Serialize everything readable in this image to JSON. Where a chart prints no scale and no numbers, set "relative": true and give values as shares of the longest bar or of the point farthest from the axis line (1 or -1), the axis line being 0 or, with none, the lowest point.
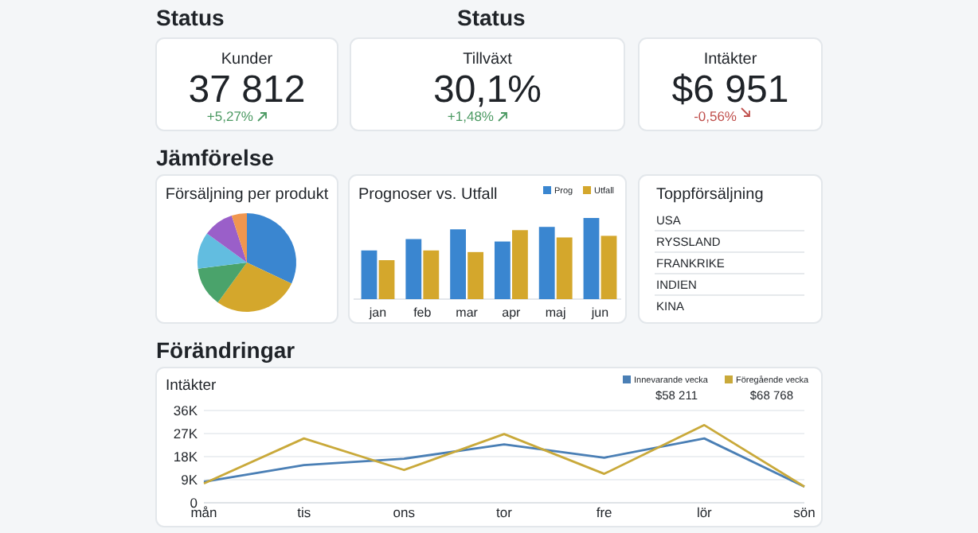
{
  "chart_data": [
    {
      "type": "other",
      "title": "Status",
      "subtitle": "Status",
      "categories": [
        "Kunder",
        "Tillväxt",
        "Intäkter"
      ],
      "annotations": [
        "37 812",
        "30,1%",
        "$6 951"
      ],
      "values": [
        5.27,
        1.48,
        -0.56
      ],
      "value_labels": [
        "+5,27%",
        "+1,48%",
        "-0,56%"
      ]
    },
    {
      "type": "pie",
      "title": "Försäljning per produkt",
      "annotations": [
        "Jämförelse"
      ],
      "categories": [
        null,
        null,
        null,
        null,
        null,
        null
      ],
      "values": [
        32,
        28,
        13,
        12,
        10,
        5
      ],
      "colors": [
        "#3a86d0",
        "#d4a72c",
        "#4aa36b",
        "#62bde0",
        "#9a5fc9",
        "#f0964f"
      ]
    },
    {
      "type": "bar",
      "title": "Prognoser vs. Utfall",
      "relative": true,
      "legend": "top right",
      "categories": [
        "jan",
        "feb",
        "mar",
        "apr",
        "maj",
        "jun"
      ],
      "series": [
        {
          "name": "Prog",
          "color": "#3a86d0",
          "values": [
            0.6,
            0.74,
            0.86,
            0.71,
            0.89,
            1.0
          ]
        },
        {
          "name": "Utfall",
          "color": "#d4a72c",
          "values": [
            0.48,
            0.6,
            0.58,
            0.85,
            0.76,
            0.78
          ]
        }
      ]
    },
    {
      "type": "other",
      "title": "Toppförsäljning",
      "annotations": [
        "USA",
        "RYSSLAND",
        "FRANKRIKE",
        "INDIEN",
        "KINA"
      ]
    },
    {
      "type": "line",
      "title": "Intäkter",
      "annotations": [
        "Förändringar",
        "$58 211",
        "$68 768"
      ],
      "categories": [
        "mån",
        "tis",
        "ons",
        "tor",
        "fre",
        "lör",
        "sön"
      ],
      "ylim": [
        0,
        36000
      ],
      "yticks": [
        {
          "value": 0,
          "label": "0"
        },
        {
          "value": 9000,
          "label": "9K"
        },
        {
          "value": 18000,
          "label": "18K"
        },
        {
          "value": 27000,
          "label": "27K"
        },
        {
          "value": 36000,
          "label": "36K"
        }
      ],
      "grid": "y",
      "legend": "top right",
      "series": [
        {
          "name": "Innevarande vecka",
          "color": "#4a7fb5",
          "values": [
            8200,
            14700,
            17200,
            22800,
            17600,
            25100,
            6300
          ]
        },
        {
          "name": "Föregående vecka",
          "color": "#c9a93a",
          "values": [
            7500,
            25100,
            12800,
            26800,
            11300,
            30300,
            6300
          ]
        }
      ]
    }
  ]
}
